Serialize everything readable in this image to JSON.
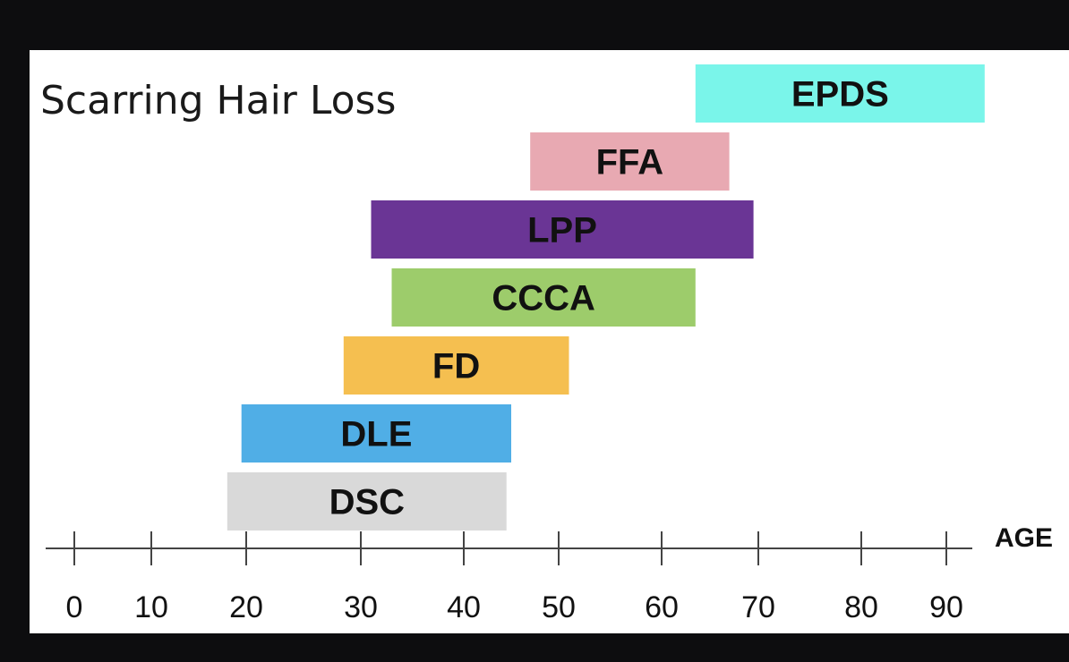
{
  "chart_data": {
    "type": "bar",
    "orientation": "horizontal-range",
    "title": "Scarring Hair Loss",
    "xlabel": "AGE",
    "ylabel": "",
    "xlim": [
      0,
      95
    ],
    "ticks": [
      0,
      10,
      20,
      30,
      40,
      50,
      60,
      70,
      80,
      90
    ],
    "tick_labels": [
      "0",
      "10",
      "20",
      "30",
      "40",
      "50",
      "60",
      "70",
      "80",
      "90"
    ],
    "grid": false,
    "legend": "none",
    "bars": [
      {
        "label": "EPDS",
        "start": 63.5,
        "end": 94.5,
        "color": "#7af5ea"
      },
      {
        "label": "FFA",
        "start": 47.0,
        "end": 67.0,
        "color": "#e8a9b2"
      },
      {
        "label": "LPP",
        "start": 31.0,
        "end": 69.5,
        "color": "#6a3595"
      },
      {
        "label": "CCCA",
        "start": 33.0,
        "end": 63.5,
        "color": "#9dcc6b"
      },
      {
        "label": "FD",
        "start": 28.5,
        "end": 51.0,
        "color": "#f5bf50"
      },
      {
        "label": "DLE",
        "start": 19.5,
        "end": 45.0,
        "color": "#50aee6"
      },
      {
        "label": "DSC",
        "start": 18.0,
        "end": 44.5,
        "color": "#d9d9d9"
      }
    ]
  }
}
